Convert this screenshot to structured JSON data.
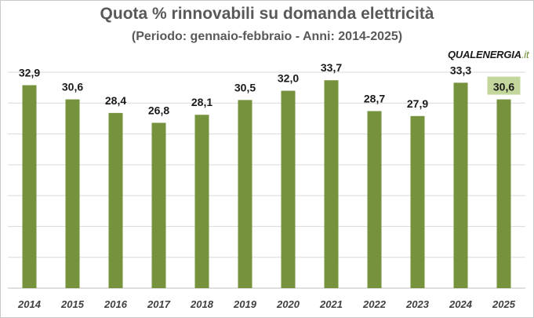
{
  "chart_data": {
    "type": "bar",
    "title": "Quota % rinnovabili su domanda elettricità",
    "subtitle": "(Periodo: gennaio-febbraio - Anni: 2014-2025)",
    "categories": [
      "2014",
      "2015",
      "2016",
      "2017",
      "2018",
      "2019",
      "2020",
      "2021",
      "2022",
      "2023",
      "2024",
      "2025"
    ],
    "values": [
      32.9,
      30.6,
      28.4,
      26.8,
      28.1,
      30.5,
      32.0,
      33.7,
      28.7,
      27.9,
      33.3,
      30.6
    ],
    "value_labels": [
      "32,9",
      "30,6",
      "28,4",
      "26,8",
      "28,1",
      "30,5",
      "32,0",
      "33,7",
      "28,7",
      "27,9",
      "33,3",
      "30,6"
    ],
    "highlighted_index": 11,
    "ylim": [
      0,
      35
    ],
    "grid": true,
    "xlabel": "",
    "ylabel": "",
    "colors": {
      "bar": "#76923c",
      "highlight_label_bg": "#c3d69b",
      "grid": "#d9d9d9"
    }
  },
  "logo": {
    "part1": "QUAL",
    "part2": "ENERGIA",
    "suffix": ".it"
  }
}
